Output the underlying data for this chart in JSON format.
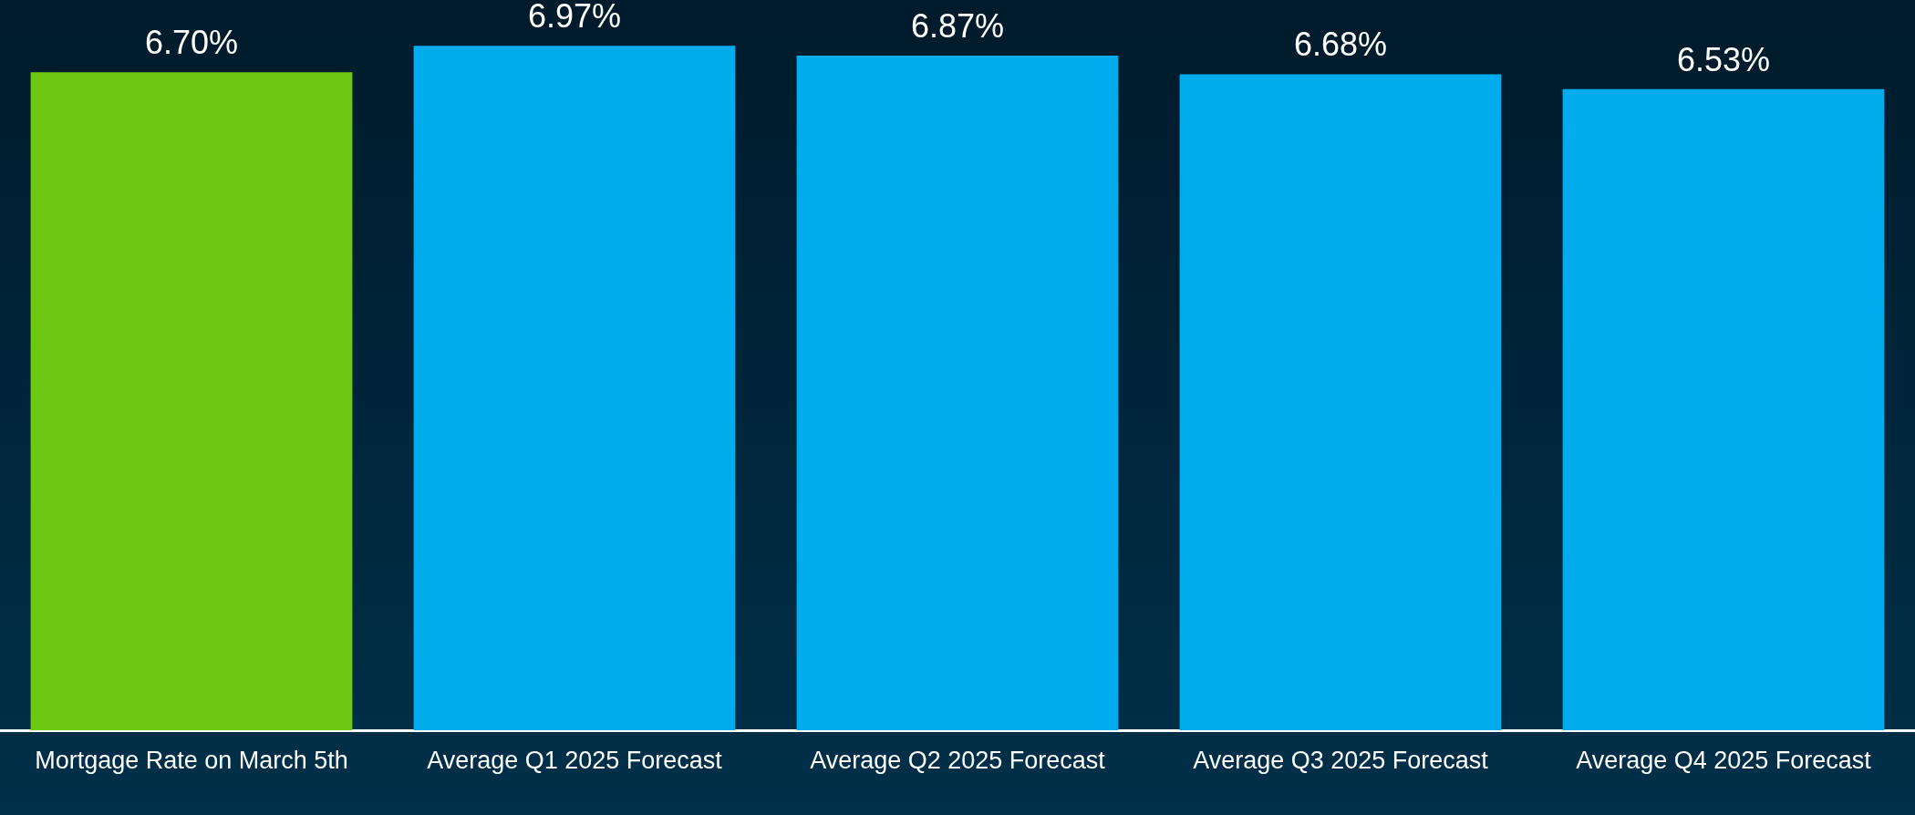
{
  "chart_data": {
    "type": "bar",
    "categories": [
      "Mortgage Rate on March 5th",
      "Average Q1 2025 Forecast",
      "Average Q2 2025 Forecast",
      "Average Q3 2025 Forecast",
      "Average Q4 2025 Forecast"
    ],
    "values": [
      6.7,
      6.97,
      6.87,
      6.68,
      6.53
    ],
    "colors": [
      "#6ec813",
      "#00acee",
      "#00acee",
      "#00acee",
      "#00acee"
    ],
    "value_labels": [
      "6.70%",
      "6.97%",
      "6.87%",
      "6.68%",
      "6.53%"
    ],
    "tick_labels": "x",
    "grid": false,
    "legend": false
  }
}
